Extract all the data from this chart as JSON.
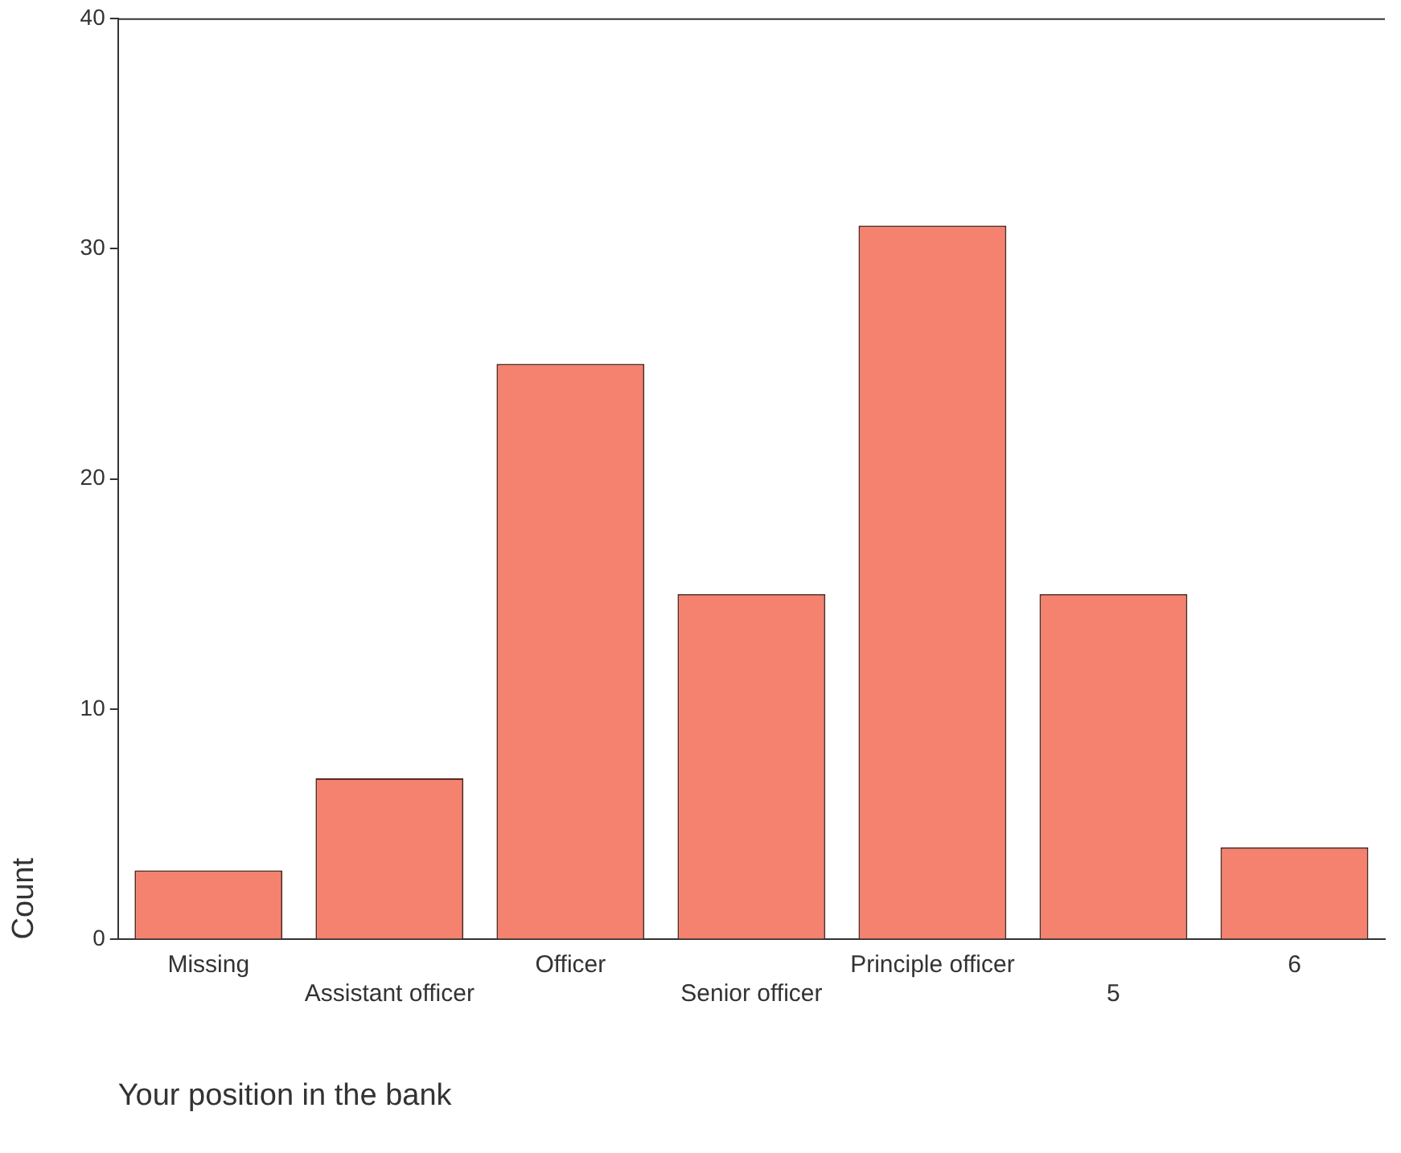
{
  "chart_data": {
    "type": "bar",
    "xlabel": "Your position in the bank",
    "ylabel": "Count",
    "categories": [
      "Missing",
      "Assistant officer",
      "Officer",
      "Senior officer",
      "Principle officer",
      "5",
      "6"
    ],
    "values": [
      3,
      7,
      25,
      15,
      31,
      15,
      4
    ],
    "color": "#f4826e",
    "ylim": [
      0,
      40
    ],
    "yticks": [
      0,
      10,
      20,
      30,
      40
    ],
    "grid": false,
    "legend": false
  }
}
